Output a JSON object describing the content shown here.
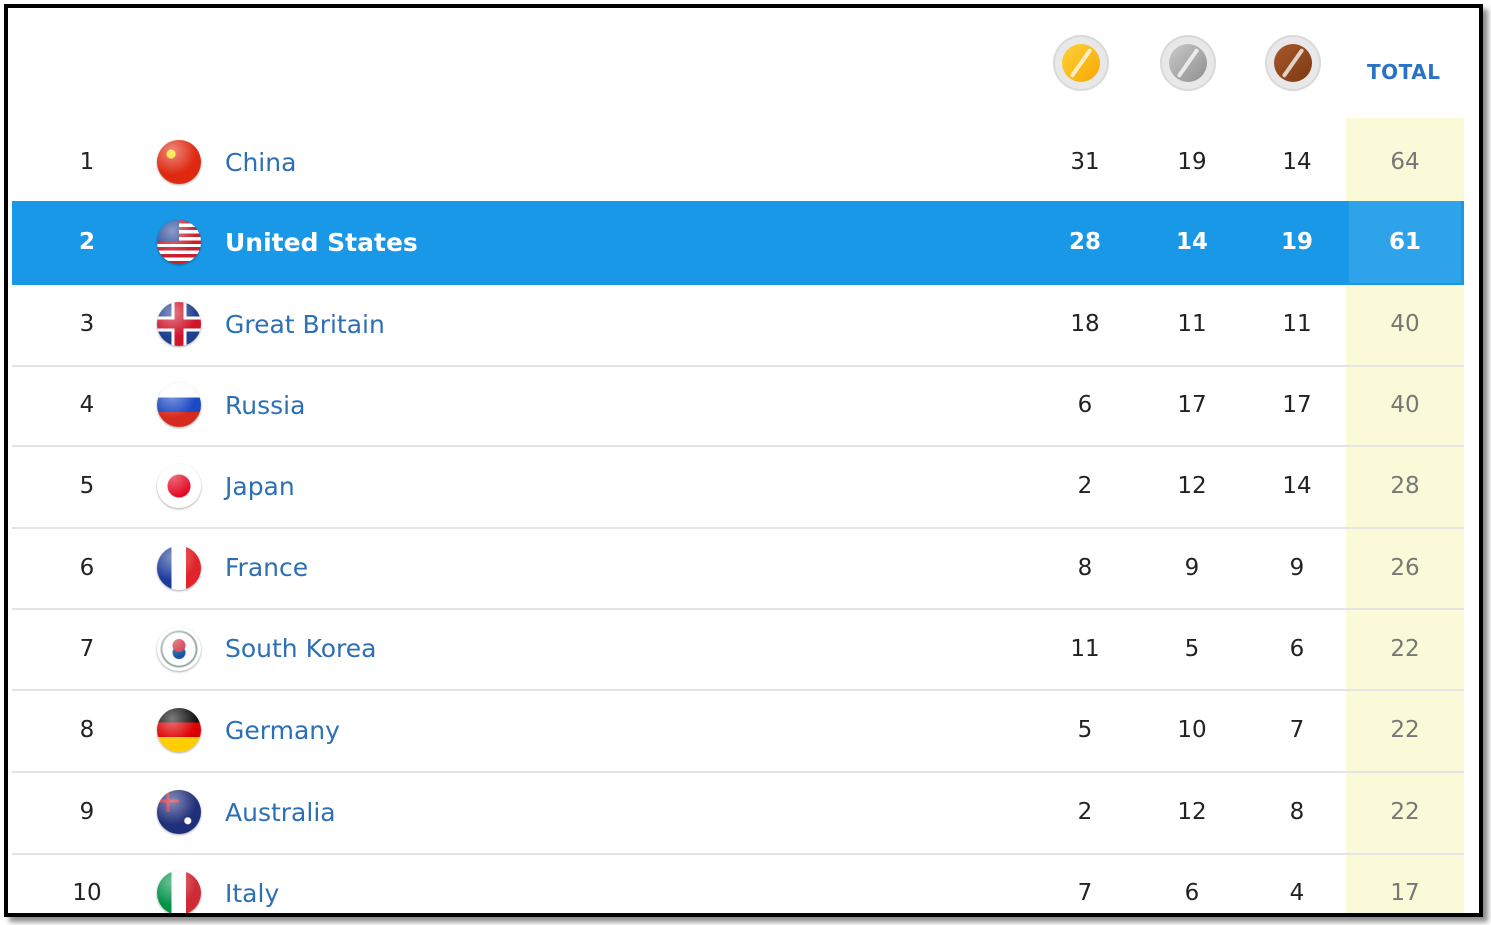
{
  "header": {
    "total_label": "TOTAL",
    "medal_colors": {
      "gold": "#f7a600",
      "silver": "#8f8f8f",
      "bronze": "#7a3a14"
    }
  },
  "rows": [
    {
      "rank": "1",
      "country": "China",
      "gold": "31",
      "silver": "19",
      "bronze": "14",
      "total": "64",
      "flag_icon": "china-flag-icon",
      "selected": false
    },
    {
      "rank": "2",
      "country": "United States",
      "gold": "28",
      "silver": "14",
      "bronze": "19",
      "total": "61",
      "flag_icon": "united-states-flag-icon",
      "selected": true
    },
    {
      "rank": "3",
      "country": "Great Britain",
      "gold": "18",
      "silver": "11",
      "bronze": "11",
      "total": "40",
      "flag_icon": "great-britain-flag-icon",
      "selected": false
    },
    {
      "rank": "4",
      "country": "Russia",
      "gold": "6",
      "silver": "17",
      "bronze": "17",
      "total": "40",
      "flag_icon": "russia-flag-icon",
      "selected": false
    },
    {
      "rank": "5",
      "country": "Japan",
      "gold": "2",
      "silver": "12",
      "bronze": "14",
      "total": "28",
      "flag_icon": "japan-flag-icon",
      "selected": false
    },
    {
      "rank": "6",
      "country": "France",
      "gold": "8",
      "silver": "9",
      "bronze": "9",
      "total": "26",
      "flag_icon": "france-flag-icon",
      "selected": false
    },
    {
      "rank": "7",
      "country": "South Korea",
      "gold": "11",
      "silver": "5",
      "bronze": "6",
      "total": "22",
      "flag_icon": "south-korea-flag-icon",
      "selected": false
    },
    {
      "rank": "8",
      "country": "Germany",
      "gold": "5",
      "silver": "10",
      "bronze": "7",
      "total": "22",
      "flag_icon": "germany-flag-icon",
      "selected": false
    },
    {
      "rank": "9",
      "country": "Australia",
      "gold": "2",
      "silver": "12",
      "bronze": "8",
      "total": "22",
      "flag_icon": "australia-flag-icon",
      "selected": false
    },
    {
      "rank": "10",
      "country": "Italy",
      "gold": "7",
      "silver": "6",
      "bronze": "4",
      "total": "17",
      "flag_icon": "italy-flag-icon",
      "selected": false
    }
  ]
}
